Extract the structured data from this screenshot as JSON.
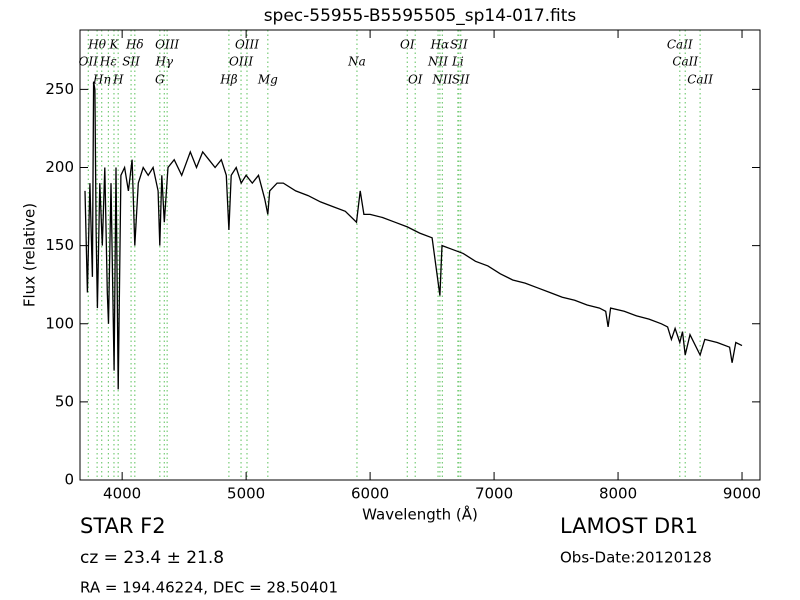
{
  "chart_data": {
    "type": "line",
    "title": "spec-55955-B5595505_sp14-017.fits",
    "x_label": "Wavelength (Å)",
    "y_label": "Flux (relative)",
    "xlim": [
      3660,
      9145
    ],
    "ylim": [
      0,
      288
    ],
    "xticks": [
      4000,
      5000,
      6000,
      7000,
      8000,
      9000
    ],
    "yticks": [
      0,
      50,
      100,
      150,
      200,
      250
    ],
    "series": [
      {
        "color": "#000000",
        "x": [
          3700,
          3720,
          3740,
          3760,
          3770,
          3780,
          3790,
          3800,
          3820,
          3840,
          3860,
          3880,
          3890,
          3910,
          3935,
          3950,
          3968,
          3990,
          4020,
          4050,
          4080,
          4102,
          4130,
          4170,
          4210,
          4250,
          4290,
          4304,
          4320,
          4340,
          4370,
          4420,
          4480,
          4550,
          4600,
          4650,
          4700,
          4750,
          4800,
          4840,
          4861,
          4880,
          4920,
          4960,
          5000,
          5050,
          5100,
          5150,
          5175,
          5190,
          5250,
          5300,
          5400,
          5500,
          5600,
          5700,
          5800,
          5890,
          5920,
          5950,
          6000,
          6100,
          6200,
          6300,
          6400,
          6500,
          6563,
          6580,
          6650,
          6750,
          6850,
          6950,
          7050,
          7150,
          7250,
          7350,
          7450,
          7550,
          7650,
          7750,
          7850,
          7900,
          7920,
          7940,
          8050,
          8150,
          8250,
          8350,
          8400,
          8430,
          8460,
          8498,
          8520,
          8542,
          8580,
          8662,
          8700,
          8800,
          8900,
          8920,
          8950,
          9000
        ],
        "values": [
          185,
          120,
          190,
          130,
          255,
          250,
          160,
          110,
          190,
          150,
          200,
          120,
          100,
          190,
          70,
          200,
          58,
          195,
          200,
          185,
          205,
          150,
          190,
          200,
          195,
          200,
          185,
          150,
          195,
          165,
          200,
          205,
          195,
          210,
          200,
          210,
          205,
          200,
          205,
          195,
          160,
          195,
          200,
          190,
          195,
          190,
          195,
          180,
          170,
          185,
          190,
          190,
          185,
          182,
          178,
          175,
          172,
          165,
          185,
          170,
          170,
          168,
          165,
          162,
          158,
          155,
          118,
          150,
          148,
          145,
          140,
          137,
          132,
          128,
          126,
          123,
          120,
          117,
          115,
          112,
          110,
          108,
          98,
          110,
          108,
          105,
          103,
          100,
          98,
          90,
          97,
          88,
          95,
          80,
          93,
          80,
          90,
          88,
          85,
          75,
          88,
          86
        ]
      }
    ],
    "line_color": "#77cc77",
    "lines": [
      {
        "label": "OII",
        "x": 3727
      },
      {
        "label": "Hθ",
        "x": 3798
      },
      {
        "label": "Hη",
        "x": 3835
      },
      {
        "label": "Hε",
        "x": 3889
      },
      {
        "label": "K",
        "x": 3934
      },
      {
        "label": "H",
        "x": 3968
      },
      {
        "label": "SII",
        "x": 4072
      },
      {
        "label": "Hδ",
        "x": 4102
      },
      {
        "label": "G",
        "x": 4304
      },
      {
        "label": "Hγ",
        "x": 4340
      },
      {
        "label": "OIII",
        "x": 4363
      },
      {
        "label": "Hβ",
        "x": 4861
      },
      {
        "label": "OIII",
        "x": 4959
      },
      {
        "label": "OIII",
        "x": 5007
      },
      {
        "label": "Mg",
        "x": 5175
      },
      {
        "label": "Na",
        "x": 5894
      },
      {
        "label": "OI",
        "x": 6300
      },
      {
        "label": "OI",
        "x": 6364
      },
      {
        "label": "NII",
        "x": 6548
      },
      {
        "label": "Hα",
        "x": 6563
      },
      {
        "label": "NII",
        "x": 6583
      },
      {
        "label": "Li",
        "x": 6708
      },
      {
        "label": "SII",
        "x": 6716
      },
      {
        "label": "SII",
        "x": 6731
      },
      {
        "label": "CaII",
        "x": 8498
      },
      {
        "label": "CaII",
        "x": 8542
      },
      {
        "label": "CaII",
        "x": 8662
      }
    ],
    "info": {
      "class": "STAR   F2",
      "cz": "cz = 23.4  ± 21.8",
      "coords": "RA = 194.46224, DEC = 28.50401",
      "survey": "LAMOST DR1",
      "date": "Obs-Date:20120128"
    }
  }
}
